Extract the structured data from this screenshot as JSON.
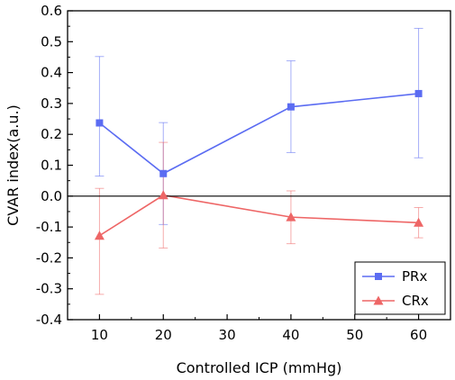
{
  "chart_data": {
    "type": "line",
    "xlabel": "Controlled ICP (mmHg)",
    "ylabel": "CVAR index(a.u.)",
    "xlim": [
      5,
      65
    ],
    "ylim": [
      -0.4,
      0.6
    ],
    "xticks": [
      10,
      20,
      30,
      40,
      50,
      60
    ],
    "yticks": [
      -0.4,
      -0.3,
      -0.2,
      -0.1,
      0.0,
      0.1,
      0.2,
      0.3,
      0.4,
      0.5,
      0.6
    ],
    "xtick_labels": [
      "10",
      "20",
      "30",
      "40",
      "50",
      "60"
    ],
    "ytick_labels": [
      "-0.4",
      "-0.3",
      "-0.2",
      "-0.1",
      "0.0",
      "0.1",
      "0.2",
      "0.3",
      "0.4",
      "0.5",
      "0.6"
    ],
    "zero_line": true,
    "grid": false,
    "legend_position": "bottom-right",
    "series": [
      {
        "name": "PRx",
        "color": "#5b6cf2",
        "marker": "square",
        "x": [
          10,
          20,
          40,
          60
        ],
        "y": [
          0.237,
          0.073,
          0.289,
          0.332
        ],
        "err_low": [
          0.065,
          -0.092,
          0.141,
          0.124
        ],
        "err_high": [
          0.452,
          0.238,
          0.438,
          0.543
        ]
      },
      {
        "name": "CRx",
        "color": "#ee6666",
        "marker": "triangle",
        "x": [
          10,
          20,
          40,
          60
        ],
        "y": [
          -0.128,
          0.003,
          -0.068,
          -0.086
        ],
        "err_low": [
          -0.318,
          -0.168,
          -0.154,
          -0.135
        ],
        "err_high": [
          0.025,
          0.174,
          0.017,
          -0.037
        ]
      }
    ]
  }
}
